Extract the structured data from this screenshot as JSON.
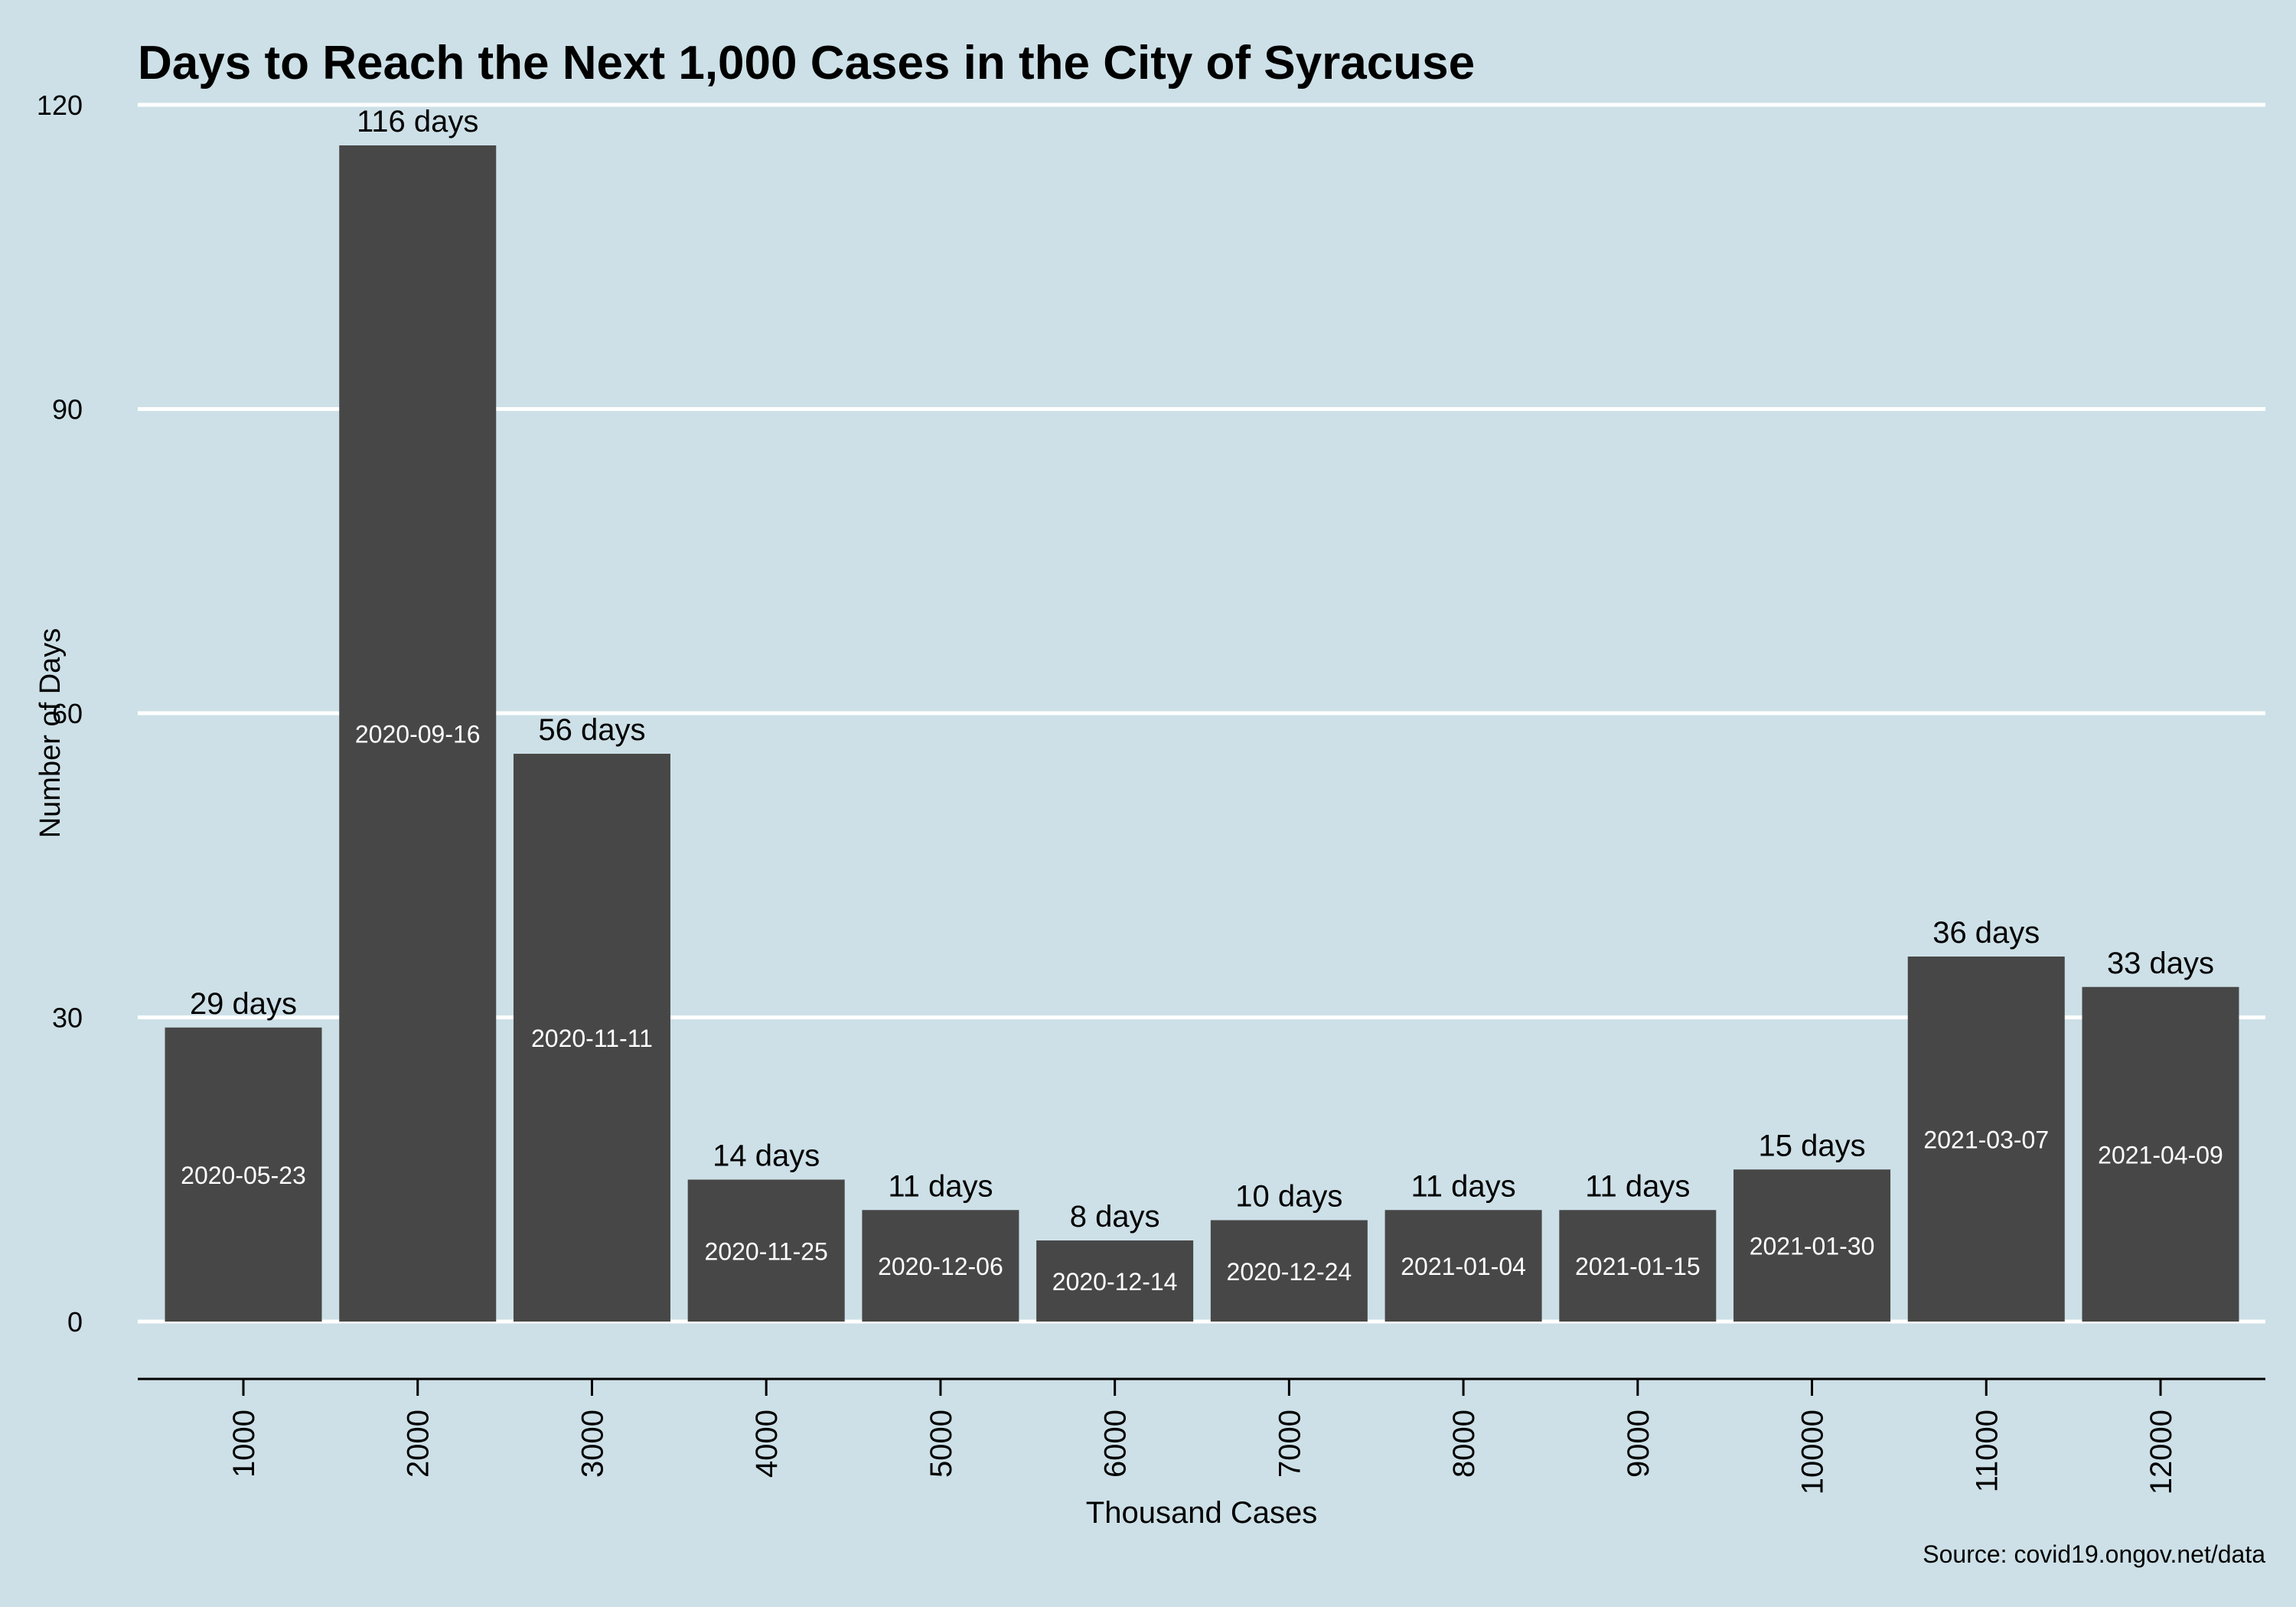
{
  "chart_data": {
    "type": "bar",
    "title": "Days to Reach the Next 1,000 Cases in the City of Syracuse",
    "xlabel": "Thousand Cases",
    "ylabel": "Number of Days",
    "caption": "Source: covid19.ongov.net/data",
    "categories": [
      "1000",
      "2000",
      "3000",
      "4000",
      "5000",
      "6000",
      "7000",
      "8000",
      "9000",
      "10000",
      "11000",
      "12000"
    ],
    "values": [
      29,
      116,
      56,
      14,
      11,
      8,
      10,
      11,
      11,
      15,
      36,
      33
    ],
    "value_labels": [
      "29 days",
      "116 days",
      "56 days",
      "14 days",
      "11 days",
      "8 days",
      "10 days",
      "11 days",
      "11 days",
      "15 days",
      "36 days",
      "33 days"
    ],
    "date_labels": [
      "2020-05-23",
      "2020-09-16",
      "2020-11-11",
      "2020-11-25",
      "2020-12-06",
      "2020-12-14",
      "2020-12-24",
      "2021-01-04",
      "2021-01-15",
      "2021-01-30",
      "2021-03-07",
      "2021-04-09"
    ],
    "yticks": [
      0,
      30,
      60,
      90,
      120
    ],
    "ylim": [
      0,
      120
    ],
    "grid": true,
    "legend": "none",
    "colors": {
      "background": "#cde0e7",
      "bar": "#474747",
      "grid": "#ffffff",
      "text": "#000000",
      "inner_text": "#ffffff"
    }
  }
}
